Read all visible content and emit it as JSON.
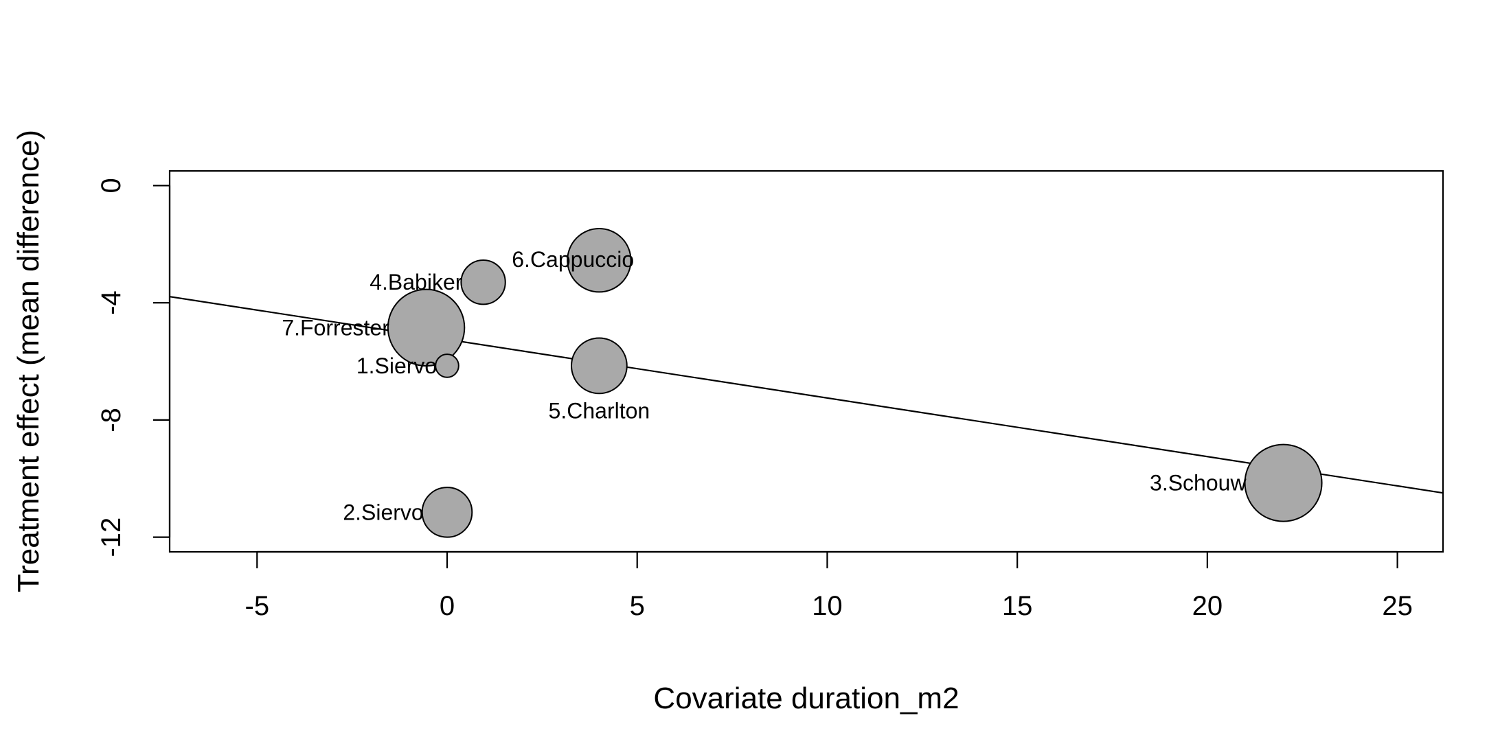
{
  "chart_data": {
    "type": "scatter",
    "xlabel": "Covariate duration_m2",
    "ylabel": "Treatment effect (mean difference)",
    "xlim": [
      -7.3,
      26.2
    ],
    "ylim": [
      -12.5,
      0.5
    ],
    "x_ticks": [
      "-5",
      "0",
      "5",
      "10",
      "15",
      "20",
      "25"
    ],
    "y_ticks": [
      "0",
      "-4",
      "-8",
      "-12"
    ],
    "grid": false,
    "legend": "none",
    "marker_color": "#a9a9a9",
    "points": [
      {
        "label": "1.Siervo",
        "x": 0,
        "y": -6.15,
        "weight": 0.09,
        "label_pos": "left"
      },
      {
        "label": "2.Siervo",
        "x": 0,
        "y": -11.15,
        "weight": 0.42,
        "label_pos": "left"
      },
      {
        "label": "3.Schouw",
        "x": 22,
        "y": -10.15,
        "weight": 1.0,
        "label_pos": "left"
      },
      {
        "label": "4.Babiker",
        "x": 0.95,
        "y": -3.3,
        "weight": 0.33,
        "label_pos": "left"
      },
      {
        "label": "5.Charlton",
        "x": 4,
        "y": -6.15,
        "weight": 0.52,
        "label_pos": "below"
      },
      {
        "label": "6.Cappuccio",
        "x": 4,
        "y": -2.55,
        "weight": 0.68,
        "label_pos": "above"
      },
      {
        "label": "7.Forrester",
        "x": -0.55,
        "y": -4.85,
        "weight": 0.99,
        "label_pos": "left"
      }
    ],
    "regression_line": {
      "intercept": -5.25,
      "slope": -0.2
    }
  }
}
